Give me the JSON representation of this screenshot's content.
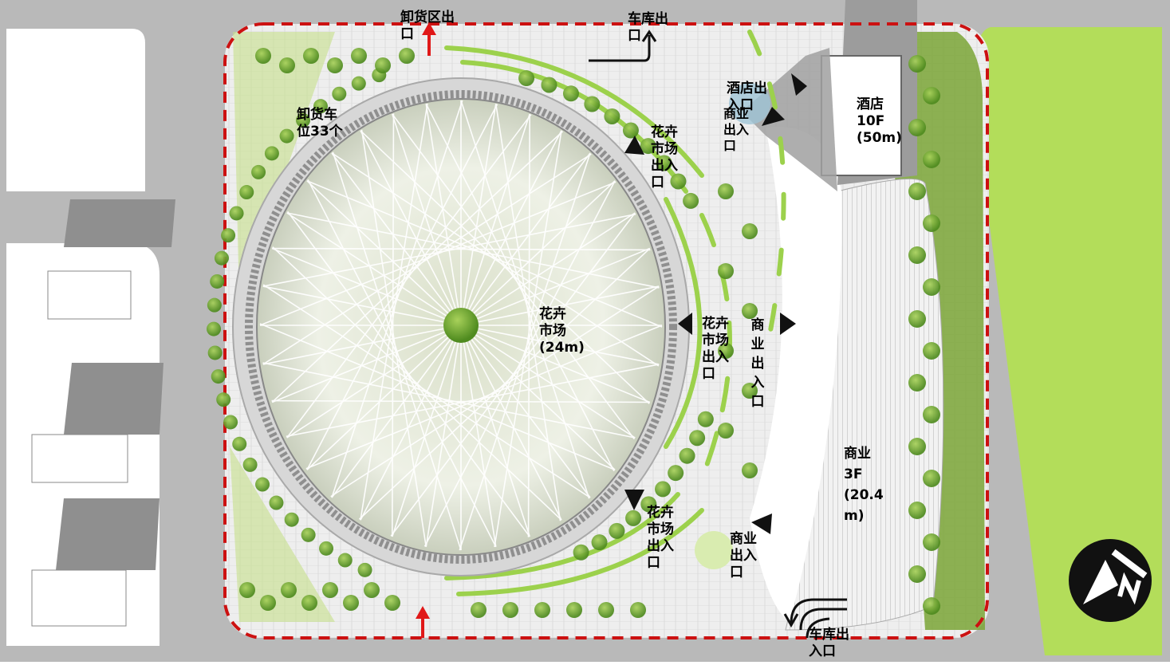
{
  "labels": {
    "unload_exit": "卸货区出\n口",
    "garage_exit_top": "车库出\n口",
    "unload_bays": "卸货车\n位33个",
    "hotel_exit": "酒店出\n入口",
    "commerce_entrance_top": "商业\n出入\n口",
    "hotel_tower": "酒店\n10F\n(50m)",
    "flower_market_entrance_ne": "花卉\n市场\n出入\n口",
    "flower_market_main": "花卉\n市场\n(24m)",
    "flower_market_entrance_e": "花卉\n市场\n出入\n口",
    "commerce_entrance_mid": "商\n业\n出\n入\n口",
    "commerce_block": "商业\n3F\n(20.4\nm)",
    "flower_market_entrance_se": "花卉\n市场\n出入\n口",
    "commerce_entrance_bottom": "商业\n出入\n口",
    "garage_entrance_bottom": "车库出\n入口"
  },
  "colors": {
    "site_boundary": "#cc1111",
    "road": "#b9b9b9",
    "lawn": "#b3dd5a",
    "tree": "#7aa536",
    "building_shadow": "#9a9a9a",
    "arrow_red": "#e01818"
  },
  "icons": {
    "north_arrow": "north-arrow-icon",
    "entrance_marker": "triangle-marker-icon"
  }
}
